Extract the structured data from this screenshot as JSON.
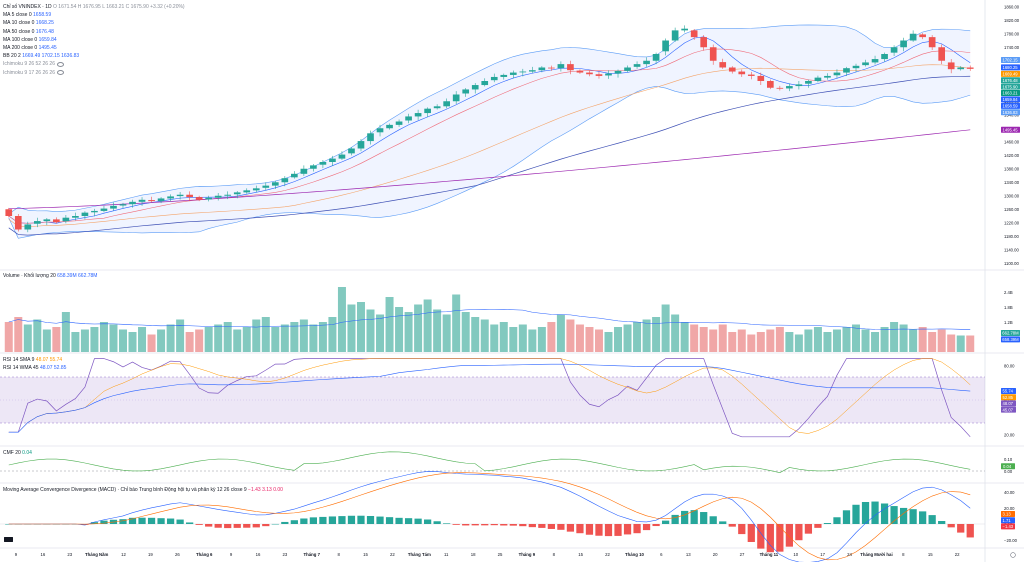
{
  "header": {
    "title": "Chỉ số VNINDEX · 1D",
    "ohlc": "O 1671.54  H 1676.95  L 1663.21  C 1675.90 +3.32 (+0.20%)",
    "indicators": [
      {
        "label": "MA 5 close 0",
        "value": "1658.59"
      },
      {
        "label": "MA 10 close 0",
        "value": "1668.25"
      },
      {
        "label": "MA 50 close 0",
        "value": "1676.48"
      },
      {
        "label": "MA 100 close 0",
        "value": "1659.84"
      },
      {
        "label": "MA 200 close 0",
        "value": "1495.45"
      },
      {
        "label": "BB 20 2",
        "value": "1669.49  1702.15  1636.83"
      },
      {
        "label": "Ichimoku 9 26 52 26 26",
        "value": ""
      },
      {
        "label": "Ichimoku 9 17 26 26 26",
        "value": ""
      }
    ]
  },
  "panes": {
    "volume_title": "Volume · Khối lượng 20",
    "volume_values": "658.39M  662.78M",
    "rsi1_title": "RSI 14 SMA 9",
    "rsi1_values": "48.07  55.74",
    "rsi2_title": "RSI 14 WMA 45",
    "rsi2_values": "48.07  52.85",
    "cmf_title": "CMF 20",
    "cmf_value": "0.04",
    "macd_title": "Moving Average Convergence Divergence (MACD) · Chỉ báo Trung bình Động hội tụ và phân kỳ  12 26 close 9",
    "macd_values": "−1.43  3.13  0.00"
  },
  "price_axis_labels": [
    "1860.00",
    "1820.00",
    "1780.00",
    "1740.00",
    "1700.00",
    "1660.00",
    "1620.00",
    "1580.00",
    "1540.00",
    "1500.00",
    "1460.00",
    "1420.00",
    "1380.00",
    "1340.00",
    "1300.00",
    "1260.00",
    "1220.00",
    "1180.00",
    "1140.00",
    "1100.00"
  ],
  "price_tags": [
    {
      "value": "1702.15",
      "color": "#5b9cf6"
    },
    {
      "value": "1680.25",
      "color": "#2962ff"
    },
    {
      "value": "1669.49",
      "color": "#ff9800"
    },
    {
      "value": "1676.48",
      "color": "#26a69a"
    },
    {
      "value": "1675.90",
      "color": "#26a69a"
    },
    {
      "value": "1663.21",
      "color": "#089981"
    },
    {
      "value": "1659.84",
      "color": "#2962ff"
    },
    {
      "value": "1658.59",
      "color": "#2962ff"
    },
    {
      "value": "1636.83",
      "color": "#5b9cf6"
    },
    {
      "value": "1495.45",
      "color": "#9c27b0"
    }
  ],
  "volume_axis_labels": [
    "2.4B",
    "1.8B",
    "1.2B"
  ],
  "volume_tags": [
    {
      "value": "662.78M",
      "color": "#26a69a"
    },
    {
      "value": "658.39M",
      "color": "#2962ff"
    }
  ],
  "rsi_axis_labels": [
    "80.00",
    "50.00",
    "20.00"
  ],
  "rsi_tags": [
    {
      "value": "55.74",
      "color": "#2962ff"
    },
    {
      "value": "52.85",
      "color": "#ff9800"
    },
    {
      "value": "48.07",
      "color": "#7e57c2"
    },
    {
      "value": "45.07",
      "color": "#7e57c2"
    }
  ],
  "cmf_axis_labels": [
    "0.10",
    "0.00"
  ],
  "cmf_tag": {
    "value": "0.04",
    "color": "#4caf50"
  },
  "macd_axis_labels": [
    "40.00",
    "20.00",
    "0.00",
    "−20.00"
  ],
  "macd_tags": [
    {
      "value": "3.13",
      "color": "#ff6d00"
    },
    {
      "value": "1.71",
      "color": "#2962ff"
    },
    {
      "value": "−1.43",
      "color": "#f23645"
    }
  ],
  "time_axis_labels": [
    "9",
    "16",
    "23",
    "Tháng Năm",
    "12",
    "19",
    "26",
    "Tháng 6",
    "9",
    "16",
    "23",
    "Tháng 7",
    "8",
    "15",
    "22",
    "Tháng Tám",
    "11",
    "18",
    "25",
    "Tháng 9",
    "8",
    "15",
    "22",
    "Tháng 10",
    "6",
    "13",
    "20",
    "27",
    "Tháng 11",
    "10",
    "17",
    "24",
    "Tháng Mười hai",
    "8",
    "15",
    "22"
  ],
  "colors": {
    "up": "#26a69a",
    "down": "#ef5350",
    "upVol": "#82c9bf",
    "downVol": "#f0a7a7",
    "bbFill": "rgba(41,98,255,0.07)",
    "bbLine": "#5b9cf6",
    "ma5": "#2962ff",
    "ma10": "#ef6c7a",
    "ma50": "#f4a46a",
    "ma100": "#3f51b5",
    "ma200": "#9c27b0",
    "rsiBand": "rgba(126,87,194,0.14)",
    "rsi": "#7e57c2",
    "cmf": "#4caf50",
    "macd": "#2962ff",
    "signal": "#ff6d00"
  },
  "chart_data": [
    {
      "type": "candlestick",
      "title": "Chỉ số VNINDEX · 1D",
      "ylim": [
        1080,
        1880
      ],
      "candles_close": [
        1240,
        1200,
        1215,
        1225,
        1230,
        1222,
        1235,
        1240,
        1250,
        1255,
        1262,
        1270,
        1275,
        1282,
        1288,
        1284,
        1292,
        1298,
        1303,
        1296,
        1288,
        1294,
        1300,
        1303,
        1310,
        1316,
        1322,
        1330,
        1340,
        1352,
        1365,
        1380,
        1390,
        1400,
        1410,
        1422,
        1440,
        1462,
        1485,
        1500,
        1510,
        1520,
        1535,
        1545,
        1558,
        1565,
        1580,
        1600,
        1615,
        1628,
        1640,
        1652,
        1658,
        1665,
        1668,
        1672,
        1680,
        1678,
        1690,
        1672,
        1665,
        1660,
        1655,
        1662,
        1670,
        1680,
        1690,
        1700,
        1720,
        1760,
        1790,
        1795,
        1770,
        1740,
        1700,
        1680,
        1668,
        1660,
        1655,
        1640,
        1620,
        1618,
        1625,
        1630,
        1640,
        1650,
        1655,
        1665,
        1678,
        1685,
        1695,
        1705,
        1720,
        1740,
        1760,
        1780,
        1770,
        1740,
        1700,
        1675,
        1680,
        1676
      ]
    },
    {
      "type": "bar",
      "title": "Volume",
      "values": [
        1.2,
        1.4,
        1.1,
        1.3,
        0.9,
        1.0,
        1.6,
        0.8,
        0.9,
        1.0,
        1.2,
        1.1,
        0.9,
        0.8,
        1.0,
        0.7,
        0.9,
        1.1,
        1.3,
        0.8,
        0.9,
        1.0,
        1.1,
        1.2,
        0.9,
        1.0,
        1.3,
        1.4,
        1.0,
        1.1,
        1.2,
        1.3,
        1.1,
        1.2,
        1.4,
        2.6,
        1.9,
        2.0,
        1.7,
        1.5,
        2.2,
        1.8,
        1.6,
        1.9,
        2.1,
        1.7,
        1.5,
        2.3,
        1.6,
        1.4,
        1.3,
        1.1,
        1.2,
        1.0,
        1.1,
        0.9,
        1.0,
        1.2,
        1.5,
        1.3,
        1.1,
        1.0,
        0.9,
        0.8,
        1.0,
        1.1,
        1.2,
        1.3,
        1.4,
        1.9,
        1.5,
        1.2,
        1.1,
        1.0,
        0.9,
        1.1,
        0.8,
        0.9,
        0.7,
        0.8,
        0.9,
        1.0,
        0.8,
        0.7,
        0.9,
        1.0,
        0.8,
        0.9,
        1.0,
        1.1,
        0.9,
        0.8,
        1.0,
        1.2,
        1.1,
        0.9,
        1.0,
        0.8,
        0.9,
        0.7,
        0.66,
        0.66
      ]
    },
    {
      "type": "line",
      "title": "RSI 14",
      "ylim": [
        10,
        90
      ]
    },
    {
      "type": "line",
      "title": "CMF 20",
      "ylim": [
        -0.1,
        0.2
      ]
    },
    {
      "type": "line",
      "title": "MACD 12 26 close 9",
      "ylim": [
        -30,
        50
      ]
    }
  ]
}
